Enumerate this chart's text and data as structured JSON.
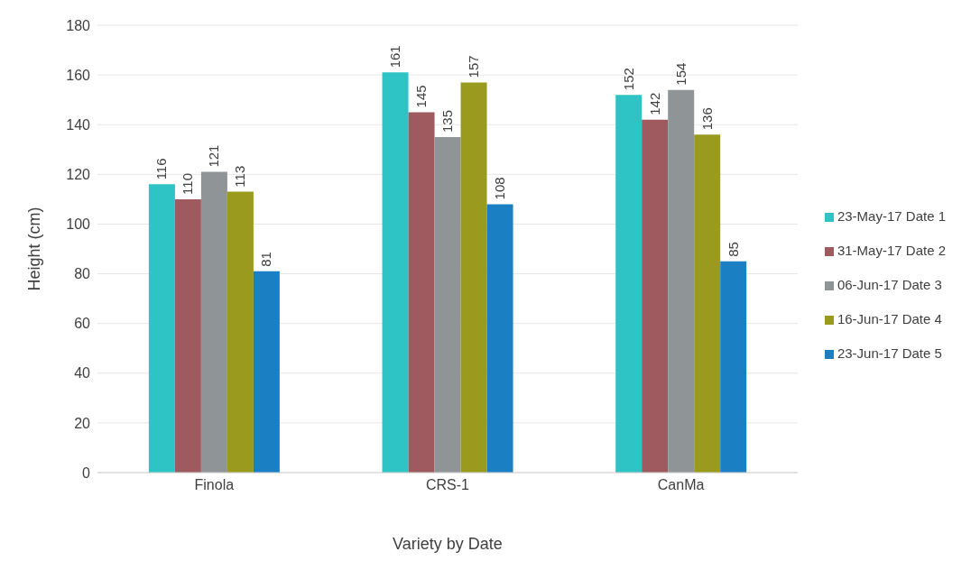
{
  "chart_data": {
    "type": "bar",
    "xlabel": "Variety by Date",
    "ylabel": "Height (cm)",
    "categories": [
      "Finola",
      "CRS-1",
      "CanMa"
    ],
    "series": [
      {
        "name": "23-May-17 Date 1",
        "color": "#2ec4c6",
        "values": [
          116,
          161,
          152
        ]
      },
      {
        "name": "31-May-17 Date 2",
        "color": "#9e5a5e",
        "values": [
          110,
          145,
          142
        ]
      },
      {
        "name": "06-Jun-17 Date 3",
        "color": "#8f9497",
        "values": [
          121,
          135,
          154
        ]
      },
      {
        "name": "16-Jun-17 Date 4",
        "color": "#9a9a1e",
        "values": [
          113,
          157,
          136
        ]
      },
      {
        "name": "23-Jun-17 Date 5",
        "color": "#1b7fc3",
        "values": [
          81,
          108,
          85
        ]
      }
    ],
    "ylim": [
      0,
      180
    ],
    "yticks": [
      0,
      20,
      40,
      60,
      80,
      100,
      120,
      140,
      160,
      180
    ],
    "grid": "y",
    "legend": "right",
    "data_labels": true
  }
}
